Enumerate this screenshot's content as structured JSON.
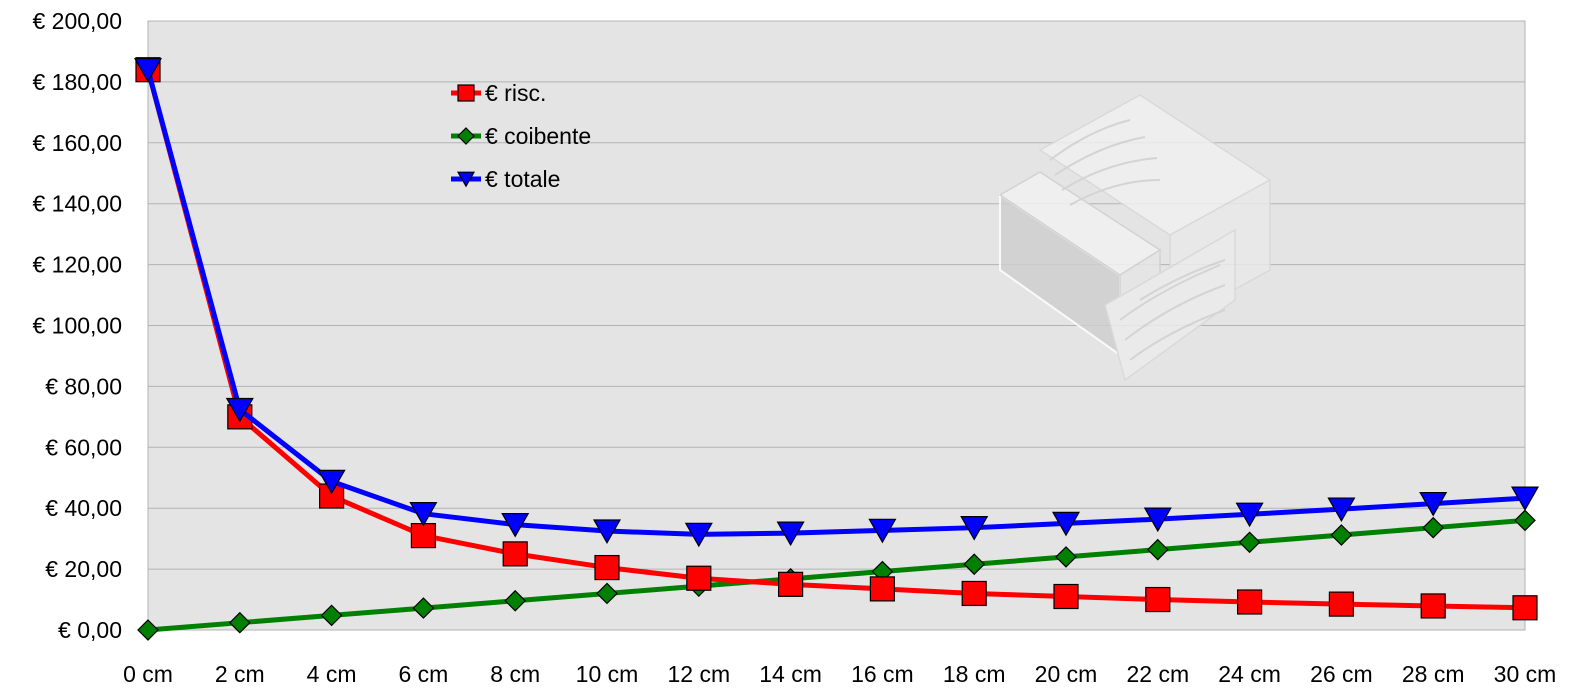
{
  "chart_data": {
    "type": "line",
    "categories": [
      "0 cm",
      "2 cm",
      "4 cm",
      "6 cm",
      "8 cm",
      "10 cm",
      "12 cm",
      "14 cm",
      "16 cm",
      "18 cm",
      "20 cm",
      "22 cm",
      "24 cm",
      "26 cm",
      "28 cm",
      "30 cm"
    ],
    "y_ticks": [
      "€ 0,00",
      "€ 20,00",
      "€ 40,00",
      "€ 60,00",
      "€ 80,00",
      "€ 100,00",
      "€ 120,00",
      "€ 140,00",
      "€ 160,00",
      "€ 180,00",
      "€ 200,00"
    ],
    "ylim": [
      0,
      200
    ],
    "grid": true,
    "legend_position": "top-center",
    "series": [
      {
        "name": "€ risc.",
        "color": "#ff0000",
        "marker": "square",
        "values": [
          184,
          70,
          44,
          31,
          25,
          20.5,
          17,
          15,
          13.5,
          12,
          11,
          10,
          9.2,
          8.5,
          7.9,
          7.3
        ]
      },
      {
        "name": "€ coibente",
        "color": "#008000",
        "marker": "diamond",
        "values": [
          0,
          2.4,
          4.8,
          7.2,
          9.6,
          12,
          14.4,
          16.8,
          19.2,
          21.6,
          24,
          26.4,
          28.8,
          31.2,
          33.6,
          36
        ]
      },
      {
        "name": "€ totale",
        "color": "#0000ff",
        "marker": "triangle-down",
        "values": [
          184,
          72.4,
          48.8,
          38.2,
          34.6,
          32.5,
          31.4,
          31.8,
          32.7,
          33.6,
          35,
          36.4,
          38,
          39.7,
          41.5,
          43.3
        ]
      }
    ]
  },
  "watermark": {
    "icon": "insulated-wall-section-icon"
  }
}
